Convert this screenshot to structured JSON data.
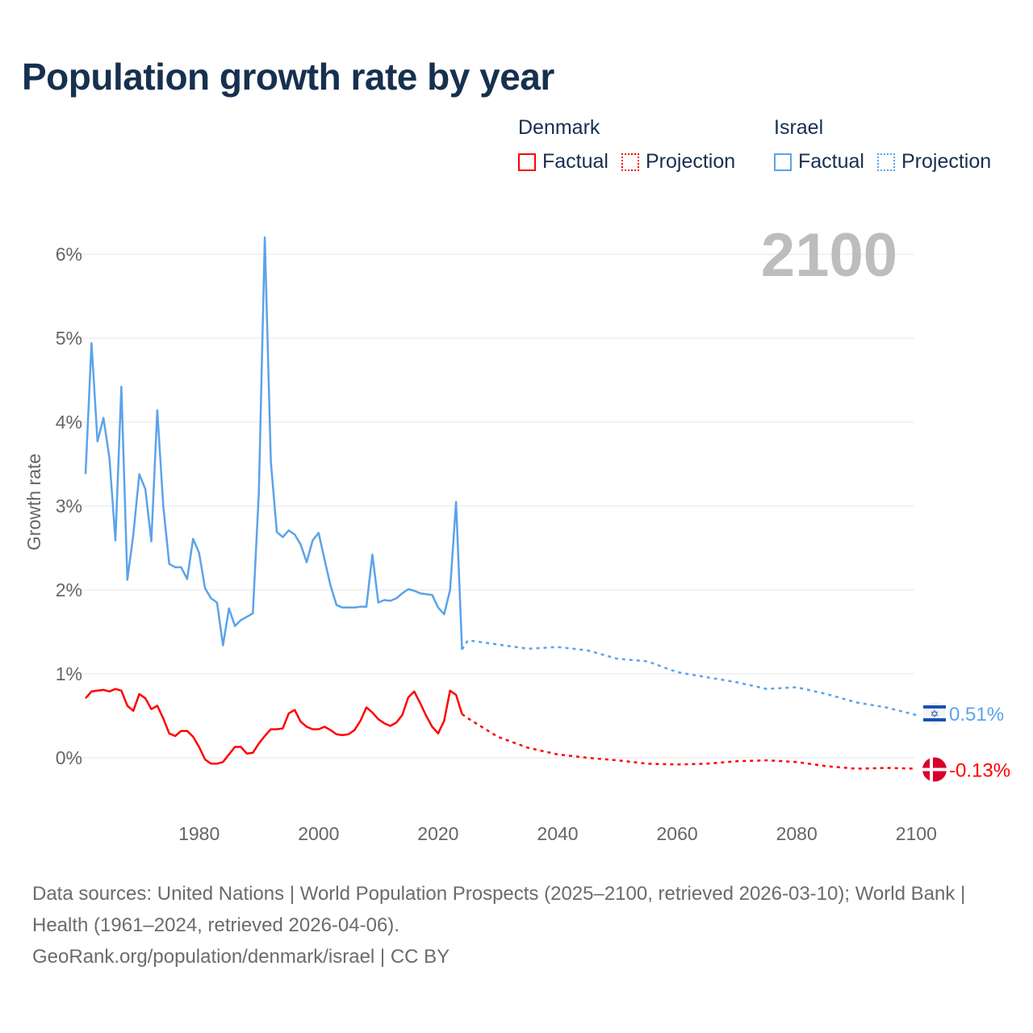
{
  "title": "Population growth rate by year",
  "legend": {
    "groups": [
      {
        "name": "Denmark",
        "factual": "Factual",
        "projection": "Projection",
        "color": "#ff0000"
      },
      {
        "name": "Israel",
        "factual": "Factual",
        "projection": "Projection",
        "color": "#5ba3ea"
      }
    ]
  },
  "chart_data": {
    "type": "line",
    "title": "Population growth rate by year",
    "xlabel": "",
    "ylabel": "Growth rate",
    "xlim": [
      1961,
      2100
    ],
    "ylim": [
      -0.6,
      6.6
    ],
    "x_ticks": [
      1980,
      2000,
      2020,
      2040,
      2060,
      2080,
      2100
    ],
    "x_tick_labels": [
      "1980",
      "2000",
      "2020",
      "2040",
      "2060",
      "2080",
      "2100"
    ],
    "y_ticks": [
      0,
      1,
      2,
      3,
      4,
      5,
      6
    ],
    "y_tick_labels": [
      "0%",
      "1%",
      "2%",
      "3%",
      "4%",
      "5%",
      "6%"
    ],
    "grid": true,
    "year_watermark": "2100",
    "series": [
      {
        "name": "Israel",
        "color": "#5ba3ea",
        "end_label": "0.51%",
        "factual_start_year": 1961,
        "factual": [
          3.38,
          4.94,
          3.77,
          4.05,
          3.57,
          2.59,
          4.42,
          2.12,
          2.66,
          3.38,
          3.2,
          2.58,
          4.14,
          3.0,
          2.31,
          2.27,
          2.27,
          2.13,
          2.61,
          2.44,
          2.02,
          1.9,
          1.85,
          1.34,
          1.78,
          1.57,
          1.64,
          1.68,
          1.72,
          3.15,
          6.2,
          3.53,
          2.69,
          2.63,
          2.71,
          2.66,
          2.54,
          2.33,
          2.59,
          2.68,
          2.36,
          2.05,
          1.82,
          1.79,
          1.79,
          1.79,
          1.8,
          1.8,
          2.42,
          1.85,
          1.88,
          1.87,
          1.9,
          1.96,
          2.01,
          1.99,
          1.96,
          1.95,
          1.94,
          1.79,
          1.71,
          2.0,
          3.05,
          1.29
        ],
        "projection_years": [
          2024,
          2025,
          2030,
          2035,
          2040,
          2045,
          2050,
          2055,
          2060,
          2065,
          2070,
          2075,
          2080,
          2085,
          2090,
          2095,
          2100
        ],
        "projection": [
          1.29,
          1.4,
          1.35,
          1.3,
          1.32,
          1.28,
          1.18,
          1.15,
          1.02,
          0.96,
          0.9,
          0.82,
          0.84,
          0.76,
          0.66,
          0.6,
          0.51
        ]
      },
      {
        "name": "Denmark",
        "color": "#ff0000",
        "end_label": "-0.13%",
        "factual_start_year": 1961,
        "factual": [
          0.71,
          0.79,
          0.8,
          0.81,
          0.79,
          0.82,
          0.8,
          0.62,
          0.56,
          0.76,
          0.71,
          0.58,
          0.62,
          0.47,
          0.29,
          0.26,
          0.32,
          0.32,
          0.25,
          0.13,
          -0.02,
          -0.07,
          -0.07,
          -0.05,
          0.04,
          0.13,
          0.13,
          0.05,
          0.06,
          0.17,
          0.26,
          0.34,
          0.34,
          0.35,
          0.53,
          0.57,
          0.43,
          0.37,
          0.34,
          0.34,
          0.37,
          0.33,
          0.28,
          0.27,
          0.28,
          0.33,
          0.44,
          0.6,
          0.54,
          0.46,
          0.41,
          0.38,
          0.42,
          0.51,
          0.72,
          0.79,
          0.65,
          0.5,
          0.37,
          0.29,
          0.44,
          0.8,
          0.75,
          0.52
        ],
        "projection_years": [
          2024,
          2025,
          2030,
          2035,
          2040,
          2045,
          2050,
          2055,
          2060,
          2065,
          2070,
          2075,
          2080,
          2085,
          2090,
          2095,
          2100
        ],
        "projection": [
          0.52,
          0.47,
          0.25,
          0.12,
          0.04,
          0.0,
          -0.03,
          -0.07,
          -0.08,
          -0.07,
          -0.04,
          -0.03,
          -0.05,
          -0.1,
          -0.13,
          -0.12,
          -0.13
        ]
      }
    ]
  },
  "footer": {
    "sources": "Data sources: United Nations | World Population Prospects (2025–2100, retrieved 2026-03-10); World Bank | Health (1961–2024, retrieved 2026-04-06).",
    "credit": "GeoRank.org/population/denmark/israel | CC BY"
  }
}
